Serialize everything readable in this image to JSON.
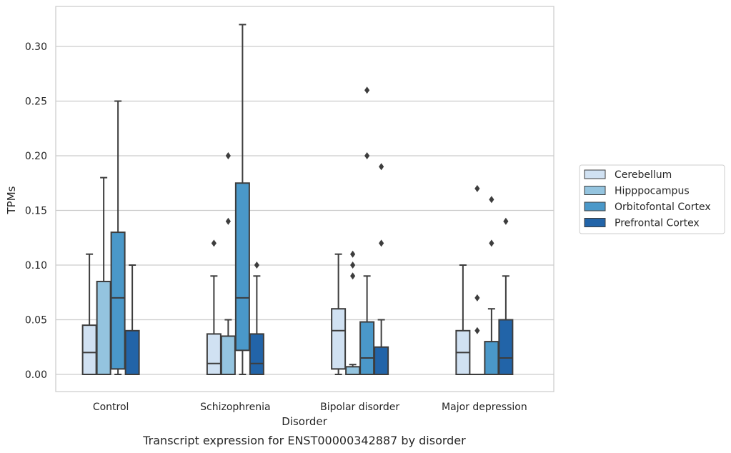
{
  "chart_data": {
    "type": "box",
    "title": "",
    "caption": "Transcript expression for ENST00000342887 by disorder",
    "xlabel": "Disorder",
    "ylabel": "TPMs",
    "ylim": [
      -0.015,
      0.335
    ],
    "yticks": [
      "0.00",
      "0.05",
      "0.10",
      "0.15",
      "0.20",
      "0.25",
      "0.30"
    ],
    "grid": "horizontal",
    "legend_position": "right",
    "categories": [
      "Control",
      "Schizophrenia",
      "Bipolar disorder",
      "Major depression"
    ],
    "series": [
      {
        "name": "Cerebellum",
        "color": "#d0e1f2",
        "boxes": [
          {
            "whislo": 0.0,
            "q1": 0.0,
            "med": 0.02,
            "q3": 0.045,
            "whishi": 0.11,
            "fliers": []
          },
          {
            "whislo": 0.0,
            "q1": 0.0,
            "med": 0.01,
            "q3": 0.037,
            "whishi": 0.09,
            "fliers": [
              0.12
            ]
          },
          {
            "whislo": 0.0,
            "q1": 0.005,
            "med": 0.04,
            "q3": 0.06,
            "whishi": 0.11,
            "fliers": []
          },
          {
            "whislo": 0.0,
            "q1": 0.0,
            "med": 0.02,
            "q3": 0.04,
            "whishi": 0.1,
            "fliers": []
          }
        ]
      },
      {
        "name": "Hipppocampus",
        "color": "#94c4df",
        "boxes": [
          {
            "whislo": 0.0,
            "q1": 0.0,
            "med": 0.0,
            "q3": 0.085,
            "whishi": 0.18,
            "fliers": []
          },
          {
            "whislo": 0.0,
            "q1": 0.0,
            "med": 0.0,
            "q3": 0.035,
            "whishi": 0.05,
            "fliers": [
              0.14,
              0.2
            ]
          },
          {
            "whislo": 0.0,
            "q1": 0.0,
            "med": 0.0,
            "q3": 0.007,
            "whishi": 0.009,
            "fliers": [
              0.09,
              0.1,
              0.11
            ]
          },
          {
            "whislo": 0.0,
            "q1": 0.0,
            "med": 0.0,
            "q3": 0.0,
            "whishi": 0.0,
            "fliers": [
              0.04,
              0.07,
              0.17
            ]
          }
        ]
      },
      {
        "name": "Orbitofontal Cortex",
        "color": "#4a98c9",
        "boxes": [
          {
            "whislo": 0.0,
            "q1": 0.005,
            "med": 0.07,
            "q3": 0.13,
            "whishi": 0.25,
            "fliers": []
          },
          {
            "whislo": 0.0,
            "q1": 0.022,
            "med": 0.07,
            "q3": 0.175,
            "whishi": 0.32,
            "fliers": []
          },
          {
            "whislo": 0.0,
            "q1": 0.0,
            "med": 0.015,
            "q3": 0.048,
            "whishi": 0.09,
            "fliers": [
              0.2,
              0.26
            ]
          },
          {
            "whislo": 0.0,
            "q1": 0.0,
            "med": 0.0,
            "q3": 0.03,
            "whishi": 0.06,
            "fliers": [
              0.12,
              0.16
            ]
          }
        ]
      },
      {
        "name": "Prefrontal Cortex",
        "color": "#2264a8",
        "boxes": [
          {
            "whislo": 0.0,
            "q1": 0.0,
            "med": 0.0,
            "q3": 0.04,
            "whishi": 0.1,
            "fliers": []
          },
          {
            "whislo": 0.0,
            "q1": 0.0,
            "med": 0.01,
            "q3": 0.037,
            "whishi": 0.09,
            "fliers": [
              0.1
            ]
          },
          {
            "whislo": 0.0,
            "q1": 0.0,
            "med": 0.0,
            "q3": 0.025,
            "whishi": 0.05,
            "fliers": [
              0.12,
              0.19
            ]
          },
          {
            "whislo": 0.0,
            "q1": 0.0,
            "med": 0.015,
            "q3": 0.05,
            "whishi": 0.09,
            "fliers": [
              0.14
            ]
          }
        ]
      }
    ]
  }
}
